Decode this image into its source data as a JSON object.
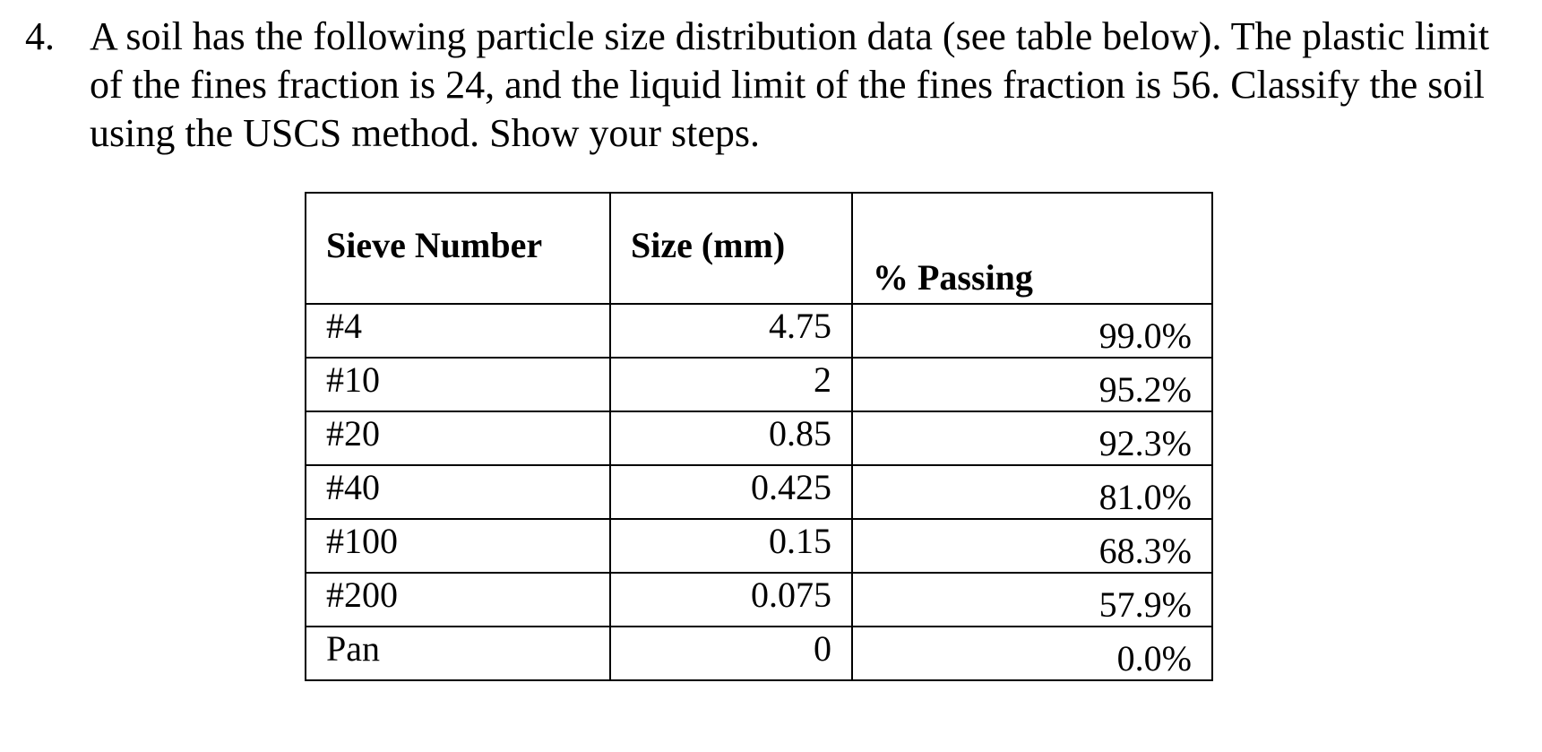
{
  "question": {
    "number": "4.",
    "lines": [
      "A soil has the following particle size distribution data (see table below). The plastic limit",
      "of the fines fraction is 24, and the liquid limit of the fines fraction is 56. Classify the soil",
      "using the USCS method. Show your steps."
    ]
  },
  "table": {
    "headers": {
      "sieve": "Sieve Number",
      "size": "Size (mm)",
      "passing": "% Passing"
    },
    "rows": [
      {
        "sieve": "#4",
        "size": "4.75",
        "passing": "99.0%"
      },
      {
        "sieve": "#10",
        "size": "2",
        "passing": "95.2%"
      },
      {
        "sieve": "#20",
        "size": "0.85",
        "passing": "92.3%"
      },
      {
        "sieve": "#40",
        "size": "0.425",
        "passing": "81.0%"
      },
      {
        "sieve": "#100",
        "size": "0.15",
        "passing": "68.3%"
      },
      {
        "sieve": "#200",
        "size": "0.075",
        "passing": "57.9%"
      },
      {
        "sieve": "Pan",
        "size": "0",
        "passing": "0.0%"
      }
    ]
  }
}
